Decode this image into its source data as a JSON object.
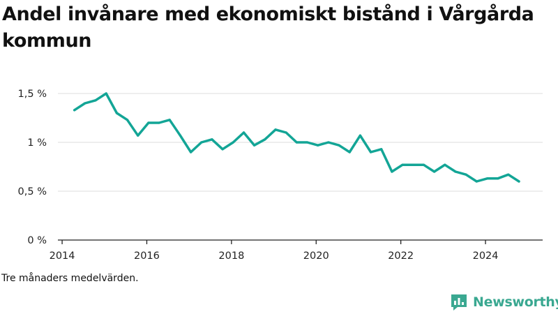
{
  "title": "Andel invånare med ekonomiskt bistånd i Vårgårda kommun",
  "caption": "Tre månaders medelvärden.",
  "brand": {
    "name": "Newsworthy",
    "icon": "newsworthy-logo-icon",
    "color": "#3aa891"
  },
  "colors": {
    "line": "#13a596",
    "grid": "#dddddd",
    "axis": "#222222"
  },
  "chart_data": {
    "type": "line",
    "title": "Andel invånare med ekonomiskt bistånd i Vårgårda kommun",
    "xlabel": "",
    "ylabel": "",
    "xlim": [
      2013.9,
      2025.35
    ],
    "ylim": [
      0,
      1.5
    ],
    "grid": true,
    "x_ticks": [
      2014,
      2016,
      2018,
      2020,
      2022,
      2024
    ],
    "x_tick_labels": [
      "2014",
      "2016",
      "2018",
      "2020",
      "2022",
      "2024"
    ],
    "y_ticks": [
      0,
      0.5,
      1,
      1.5
    ],
    "y_tick_labels": [
      "0 %",
      "0,5 %",
      "1 %",
      "1,5 %"
    ],
    "series": [
      {
        "name": "",
        "x": [
          2014.29,
          2014.54,
          2014.79,
          2015.04,
          2015.29,
          2015.54,
          2015.79,
          2016.04,
          2016.29,
          2016.54,
          2016.79,
          2017.04,
          2017.29,
          2017.54,
          2017.79,
          2018.04,
          2018.29,
          2018.54,
          2018.79,
          2019.04,
          2019.29,
          2019.54,
          2019.79,
          2020.04,
          2020.29,
          2020.54,
          2020.79,
          2021.04,
          2021.29,
          2021.54,
          2021.79,
          2022.04,
          2022.29,
          2022.54,
          2022.79,
          2023.04,
          2023.29,
          2023.54,
          2023.79,
          2024.04,
          2024.29,
          2024.54,
          2024.79
        ],
        "y": [
          1.33,
          1.4,
          1.43,
          1.5,
          1.3,
          1.23,
          1.07,
          1.2,
          1.2,
          1.23,
          1.07,
          0.9,
          1.0,
          1.03,
          0.93,
          1.0,
          1.1,
          0.97,
          1.03,
          1.13,
          1.1,
          1.0,
          1.0,
          0.97,
          1.0,
          0.97,
          0.9,
          1.07,
          0.9,
          0.93,
          0.7,
          0.77,
          0.77,
          0.77,
          0.7,
          0.77,
          0.7,
          0.67,
          0.6,
          0.63,
          0.63,
          0.67,
          0.6
        ]
      }
    ]
  }
}
